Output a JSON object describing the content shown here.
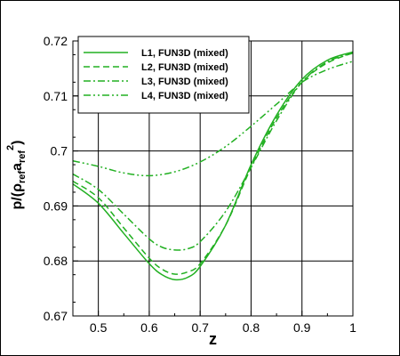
{
  "chart_data": {
    "type": "line",
    "xlabel": "z",
    "ylabel": {
      "base": "p/(ρ",
      "sub1": "ref",
      "mid": "a",
      "sub2": "ref",
      "sup": "2",
      "end": ")"
    },
    "xlim": [
      0.45,
      1.0
    ],
    "ylim": [
      0.67,
      0.72
    ],
    "xticks": [
      "0.5",
      "0.6",
      "0.7",
      "0.8",
      "0.9",
      "1"
    ],
    "yticks": [
      "0.67",
      "0.68",
      "0.69",
      "0.7",
      "0.71",
      "0.72"
    ],
    "grid": true,
    "legend_position": "top-left",
    "line_color": "#22b022",
    "series": [
      {
        "name": "L1, FUN3D (mixed)",
        "dash": "solid",
        "x": [
          0.45,
          0.5,
          0.55,
          0.6,
          0.625,
          0.65,
          0.675,
          0.7,
          0.75,
          0.8,
          0.85,
          0.9,
          0.95,
          1.0
        ],
        "y": [
          0.694,
          0.6905,
          0.685,
          0.6795,
          0.6775,
          0.6766,
          0.677,
          0.679,
          0.6865,
          0.6975,
          0.7065,
          0.713,
          0.7165,
          0.718
        ]
      },
      {
        "name": "L2, FUN3D (mixed)",
        "dash": "dashed",
        "x": [
          0.45,
          0.5,
          0.55,
          0.6,
          0.625,
          0.65,
          0.675,
          0.7,
          0.75,
          0.8,
          0.85,
          0.9,
          0.95,
          1.0
        ],
        "y": [
          0.6945,
          0.6915,
          0.686,
          0.6805,
          0.6785,
          0.6776,
          0.678,
          0.6795,
          0.6865,
          0.697,
          0.706,
          0.7125,
          0.716,
          0.7178
        ]
      },
      {
        "name": "L3, FUN3D (mixed)",
        "dash": "dashdot",
        "x": [
          0.45,
          0.5,
          0.55,
          0.6,
          0.625,
          0.65,
          0.675,
          0.7,
          0.75,
          0.8,
          0.85,
          0.9,
          0.95,
          1.0
        ],
        "y": [
          0.6958,
          0.693,
          0.6885,
          0.684,
          0.6825,
          0.682,
          0.6822,
          0.6835,
          0.689,
          0.697,
          0.7055,
          0.7125,
          0.7162,
          0.7178
        ]
      },
      {
        "name": "L4, FUN3D (mixed)",
        "dash": "dashdotdot",
        "x": [
          0.45,
          0.5,
          0.55,
          0.6,
          0.65,
          0.7,
          0.75,
          0.8,
          0.85,
          0.9,
          0.95,
          1.0
        ],
        "y": [
          0.6982,
          0.6972,
          0.696,
          0.6955,
          0.6962,
          0.698,
          0.7008,
          0.7045,
          0.7085,
          0.7125,
          0.7148,
          0.7163
        ]
      }
    ]
  }
}
